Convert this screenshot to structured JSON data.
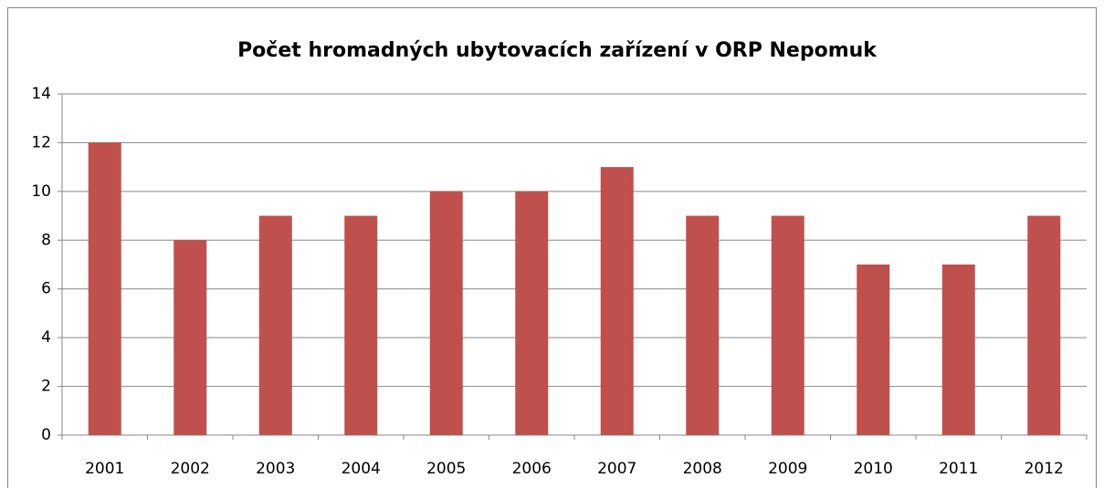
{
  "chart_data": {
    "type": "bar",
    "title": "Počet hromadných ubytovacích zařízení v ORP Nepomuk",
    "categories": [
      "2001",
      "2002",
      "2003",
      "2004",
      "2005",
      "2006",
      "2007",
      "2008",
      "2009",
      "2010",
      "2011",
      "2012"
    ],
    "values": [
      12,
      8,
      9,
      9,
      10,
      10,
      11,
      9,
      9,
      7,
      7,
      9
    ],
    "color": "#c0504d",
    "ylim": [
      0,
      14
    ],
    "yticks": [
      0,
      2,
      4,
      6,
      8,
      10,
      12,
      14
    ],
    "grid": true
  }
}
